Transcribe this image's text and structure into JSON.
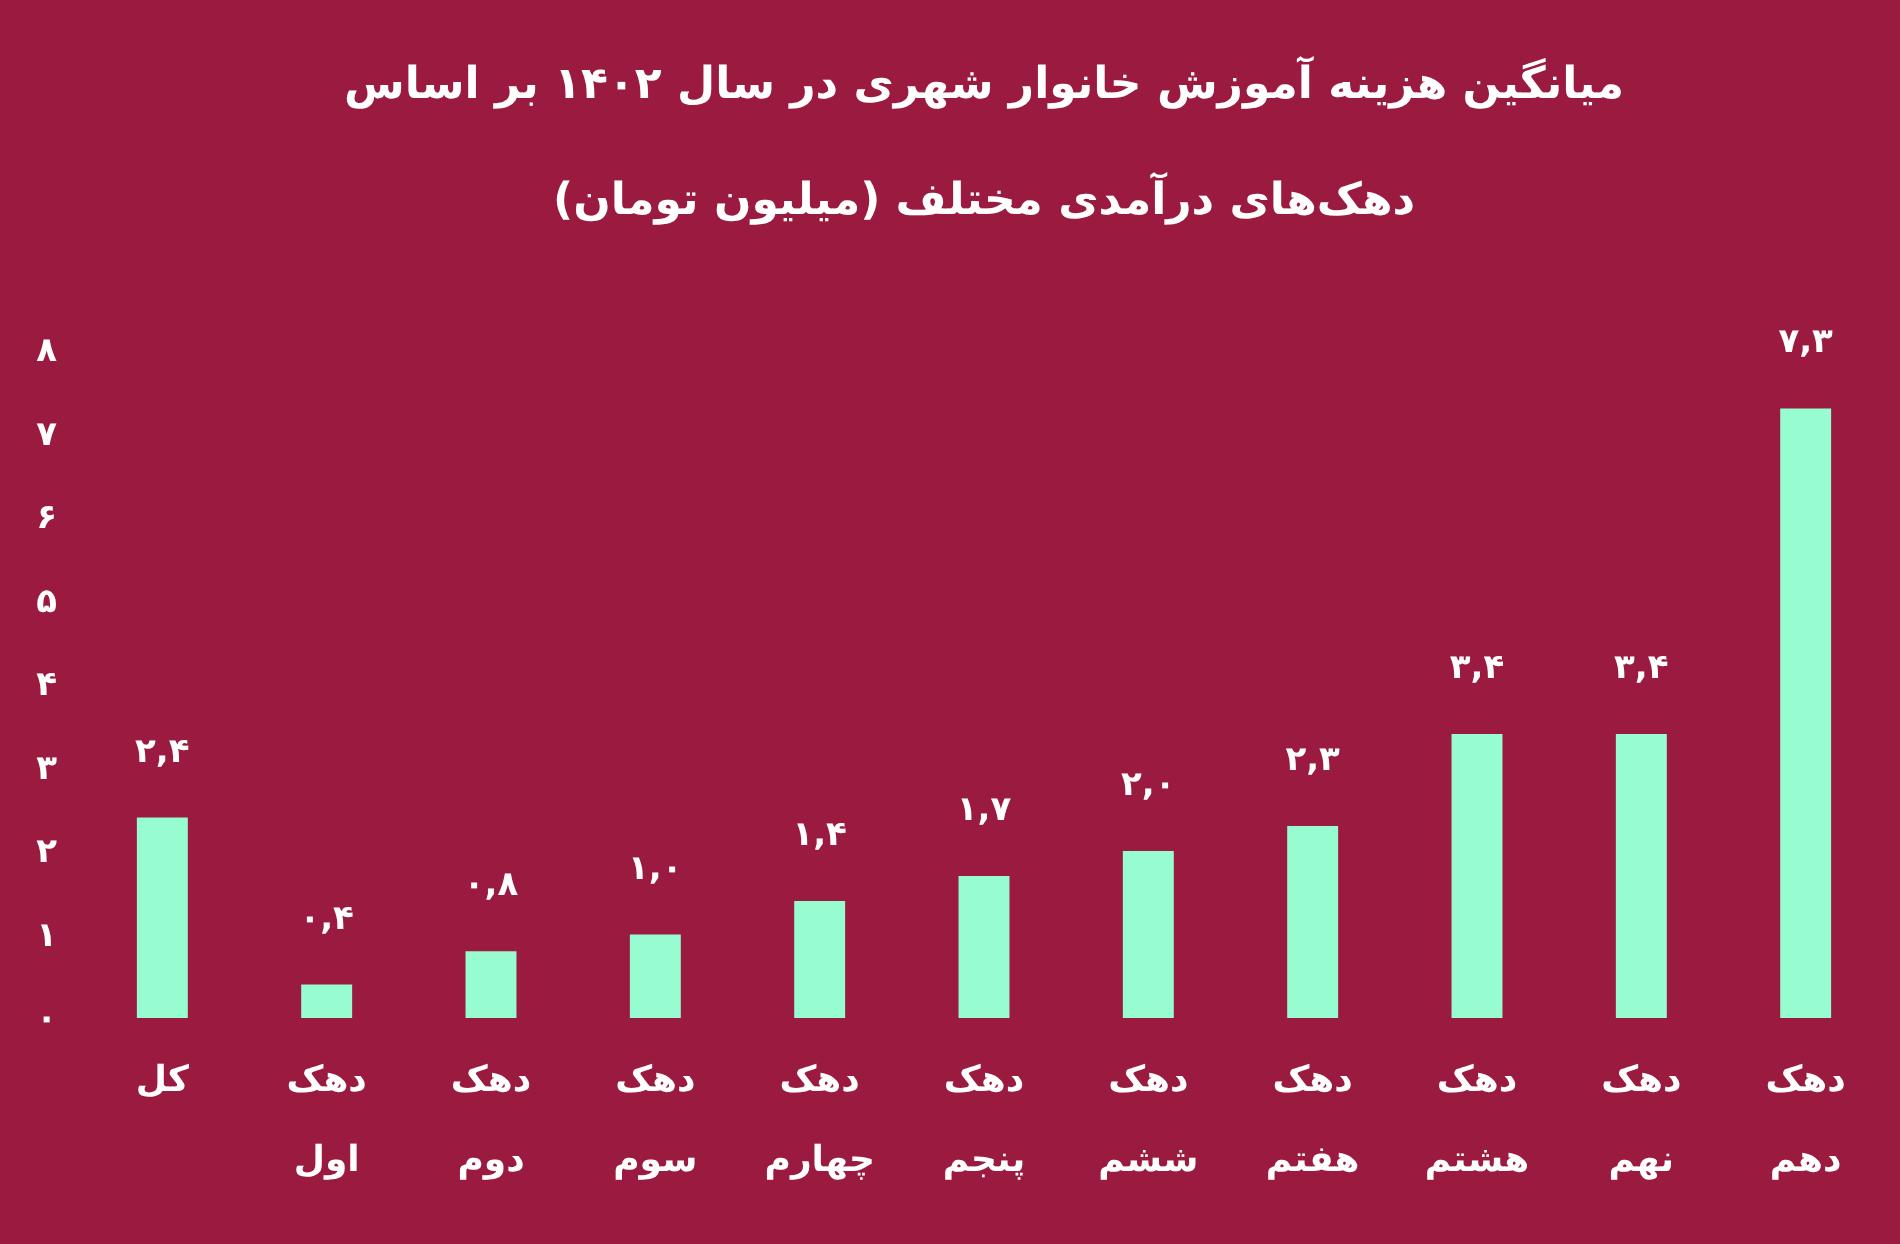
{
  "chart_data": {
    "type": "bar",
    "title": "میانگین هزینه آموزش خانوار شهری در سال ۱۴۰۲ بر اساس دهک‌های درآمدی مختلف (میلیون تومان)",
    "categories": [
      "کل",
      "دهک اول",
      "دهک دوم",
      "دهک سوم",
      "دهک چهارم",
      "دهک پنجم",
      "دهک ششم",
      "دهک هفتم",
      "دهک هشتم",
      "دهک نهم",
      "دهک دهم"
    ],
    "values": [
      2.4,
      0.4,
      0.8,
      1.0,
      1.4,
      1.7,
      2.0,
      2.3,
      3.4,
      3.4,
      7.3
    ],
    "value_labels": [
      "۲,۴",
      "۰,۴",
      "۰,۸",
      "۱,۰",
      "۱,۴",
      "۱,۷",
      "۲,۰",
      "۲,۳",
      "۳,۴",
      "۳,۴",
      "۷,۳"
    ],
    "color": "#97fcd0",
    "ylim": [
      0,
      8
    ],
    "yticks": [
      {
        "value": 0,
        "label": "۰"
      },
      {
        "value": 1,
        "label": "۱"
      },
      {
        "value": 2,
        "label": "۲"
      },
      {
        "value": 3,
        "label": "۳"
      },
      {
        "value": 4,
        "label": "۴"
      },
      {
        "value": 5,
        "label": "۵"
      },
      {
        "value": 6,
        "label": "۶"
      },
      {
        "value": 7,
        "label": "۷"
      },
      {
        "value": 8,
        "label": "۸"
      }
    ]
  }
}
